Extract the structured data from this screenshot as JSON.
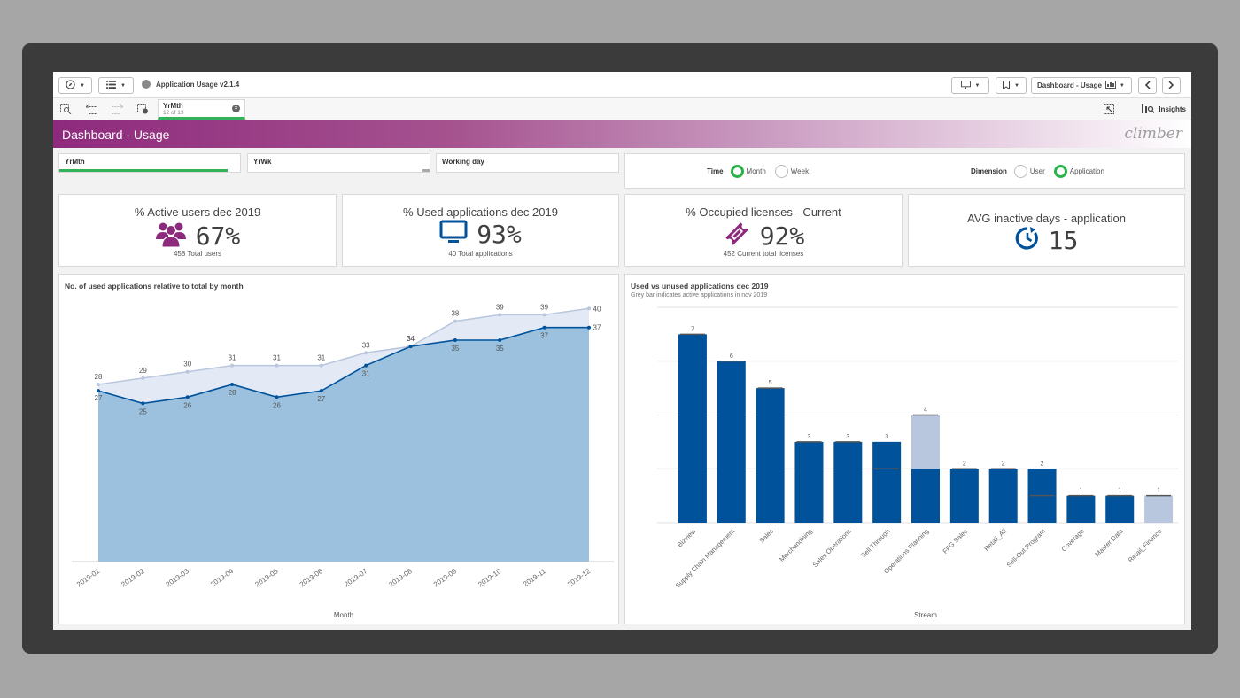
{
  "toolbar": {
    "app_title": "Application Usage v2.1.4",
    "sheet_name": "Dashboard - Usage"
  },
  "selections": {
    "chip_field": "YrMth",
    "chip_state": "12 of 13",
    "insights_label": "Insights"
  },
  "header": {
    "title": "Dashboard - Usage",
    "logo": "climber"
  },
  "filters": {
    "f1": "YrMth",
    "f2": "YrWk",
    "f3": "Working day"
  },
  "radios": {
    "time_label": "Time",
    "time_opt1": "Month",
    "time_opt2": "Week",
    "dim_label": "Dimension",
    "dim_opt1": "User",
    "dim_opt2": "Application"
  },
  "kpis": [
    {
      "title": "% Active users dec 2019",
      "value": "67%",
      "sub": "458 Total users",
      "icon": "users-icon"
    },
    {
      "title": "% Used applications dec 2019",
      "value": "93%",
      "sub": "40 Total applications",
      "icon": "monitor-icon"
    },
    {
      "title": "% Occupied licenses - Current",
      "value": "92%",
      "sub": "452 Current total licenses",
      "icon": "ticket-icon"
    },
    {
      "title": "AVG inactive days - application",
      "value": "15",
      "sub": "",
      "icon": "clock-icon"
    }
  ],
  "colors": {
    "brand_purple": "#8e2a7d",
    "used_blue": "#00529b",
    "grey_bar": "#b8c6de",
    "area_fill": "#9bc1de",
    "selection_green": "#33b359"
  },
  "chart_data": [
    {
      "type": "area",
      "title": "No. of used applications relative to total by month",
      "xlabel": "Month",
      "ylabel": "",
      "categories": [
        "2019-01",
        "2019-02",
        "2019-03",
        "2019-04",
        "2019-05",
        "2019-06",
        "2019-07",
        "2019-08",
        "2019-09",
        "2019-10",
        "2019-11",
        "2019-12"
      ],
      "series": [
        {
          "values": [
            28,
            29,
            30,
            31,
            31,
            31,
            33,
            34,
            38,
            39,
            39,
            40
          ]
        },
        {
          "values": [
            27,
            25,
            26,
            28,
            26,
            27,
            31,
            34,
            35,
            35,
            37,
            37
          ]
        }
      ],
      "ylim": [
        0,
        42
      ]
    },
    {
      "type": "bar",
      "title": "Used vs unused applications dec 2019",
      "subtitle": "Grey bar indicates active applications in nov 2019",
      "xlabel": "Stream",
      "ylabel": "",
      "categories": [
        "Bizview",
        "Supply Chain Management",
        "Sales",
        "Merchandising",
        "Sales Operations",
        "Sell Through",
        "Operations Planning",
        "FFG Sales",
        "Retail_All",
        "Sell-Out Program",
        "Coverage",
        "Master Data",
        "Retail_Finance"
      ],
      "series": [
        {
          "values": [
            7,
            6,
            5,
            3,
            3,
            3,
            2,
            2,
            2,
            2,
            1,
            1,
            0
          ]
        },
        {
          "values": [
            7,
            6,
            5,
            3,
            3,
            2,
            4,
            2,
            2,
            1,
            1,
            1,
            1
          ]
        }
      ],
      "labels": [
        7,
        6,
        5,
        3,
        3,
        3,
        4,
        2,
        2,
        2,
        1,
        1,
        1
      ],
      "ylim": [
        0,
        8
      ],
      "grid": true
    }
  ]
}
